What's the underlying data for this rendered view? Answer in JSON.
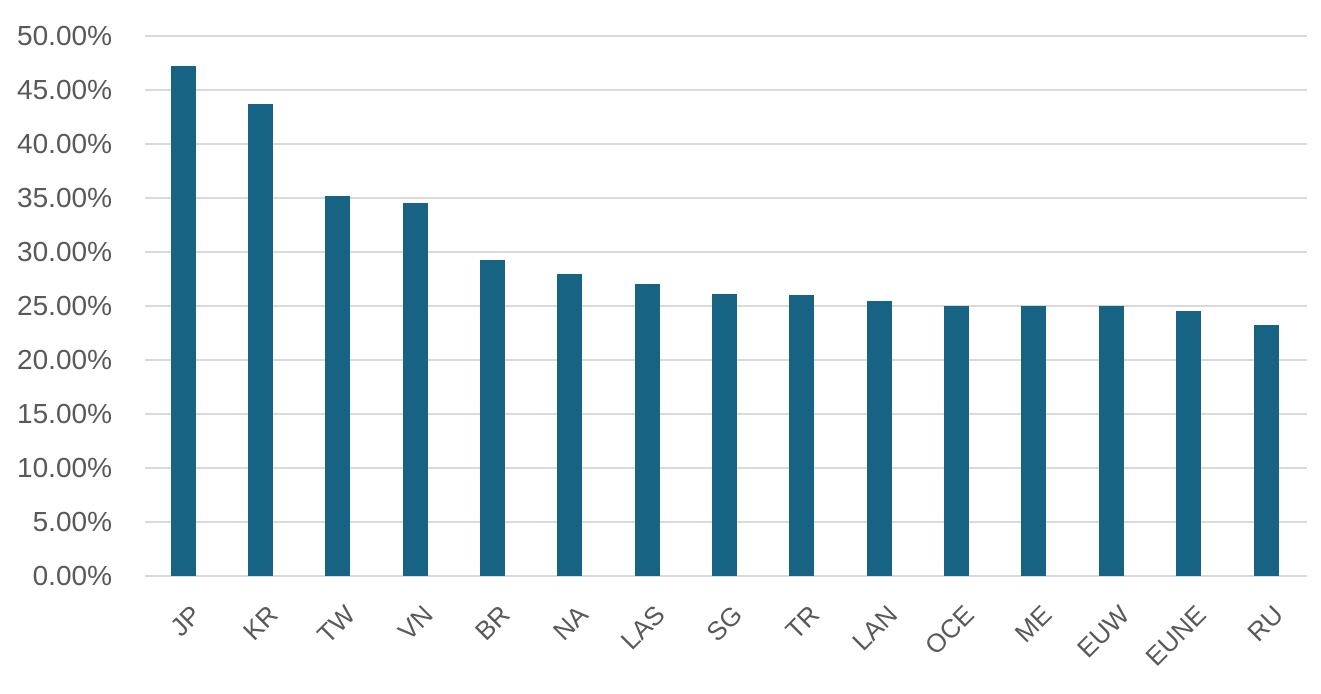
{
  "colors": {
    "bar": "#176384",
    "grid": "#d9d9d9",
    "axis_text": "#595959",
    "background": "#ffffff"
  },
  "chart_data": {
    "type": "bar",
    "title": "",
    "xlabel": "",
    "ylabel": "",
    "categories": [
      "JP",
      "KR",
      "TW",
      "VN",
      "BR",
      "NA",
      "LAS",
      "SG",
      "TR",
      "LAN",
      "OCE",
      "ME",
      "EUW",
      "EUNE",
      "RU"
    ],
    "values": [
      47.2,
      43.7,
      35.2,
      34.5,
      29.3,
      28.0,
      27.0,
      26.1,
      26.0,
      25.5,
      25.0,
      25.0,
      25.0,
      24.5,
      23.2
    ],
    "ylim": [
      0,
      50
    ],
    "ytick_step": 5,
    "ytick_labels": [
      "0.00%",
      "5.00%",
      "10.00%",
      "15.00%",
      "20.00%",
      "25.00%",
      "30.00%",
      "35.00%",
      "40.00%",
      "45.00%",
      "50.00%"
    ],
    "grid": true,
    "legend": false
  }
}
